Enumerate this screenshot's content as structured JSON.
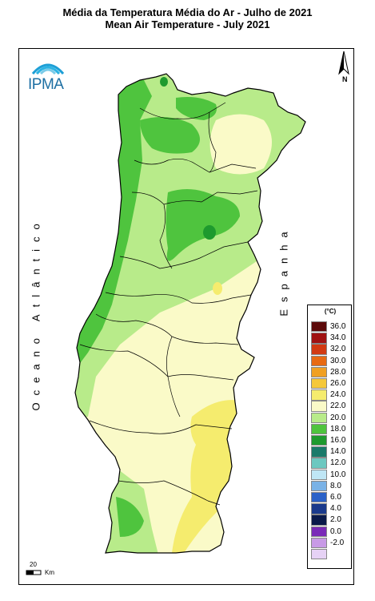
{
  "header": {
    "title_pt": "Média da Temperatura Média do Ar - Julho de 2021",
    "title_en": "Mean Air Temperature - July 2021"
  },
  "logo": {
    "text": "IPMA"
  },
  "north_arrow": {
    "label": "N"
  },
  "labels": {
    "ocean": "Oceano Atlântico",
    "spain": "Espanha"
  },
  "legend": {
    "unit": "(°C)",
    "items": [
      {
        "label": "36.0",
        "color": "#5c0a0a"
      },
      {
        "label": "34.0",
        "color": "#a01212"
      },
      {
        "label": "32.0",
        "color": "#d23a12"
      },
      {
        "label": "30.0",
        "color": "#e86a12"
      },
      {
        "label": "28.0",
        "color": "#f0a023"
      },
      {
        "label": "26.0",
        "color": "#f5c83a"
      },
      {
        "label": "24.0",
        "color": "#f5ec6e"
      },
      {
        "label": "22.0",
        "color": "#fafac8"
      },
      {
        "label": "20.0",
        "color": "#b8eb8a"
      },
      {
        "label": "18.0",
        "color": "#4fc43e"
      },
      {
        "label": "16.0",
        "color": "#1e9a2e"
      },
      {
        "label": "14.0",
        "color": "#1a7a6a"
      },
      {
        "label": "12.0",
        "color": "#6cc8c0"
      },
      {
        "label": "10.0",
        "color": "#bfe6f5"
      },
      {
        "label": "8.0",
        "color": "#7ab2e6"
      },
      {
        "label": "6.0",
        "color": "#2b62c8"
      },
      {
        "label": "4.0",
        "color": "#1a3a8c"
      },
      {
        "label": "2.0",
        "color": "#0a1a4a"
      },
      {
        "label": "0.0",
        "color": "#7a2ab8"
      },
      {
        "label": "-2.0",
        "color": "#c89ae6"
      },
      {
        "label": "",
        "color": "#e6d2f5"
      }
    ]
  },
  "scale_bar": {
    "value": "20",
    "unit": "Km"
  }
}
